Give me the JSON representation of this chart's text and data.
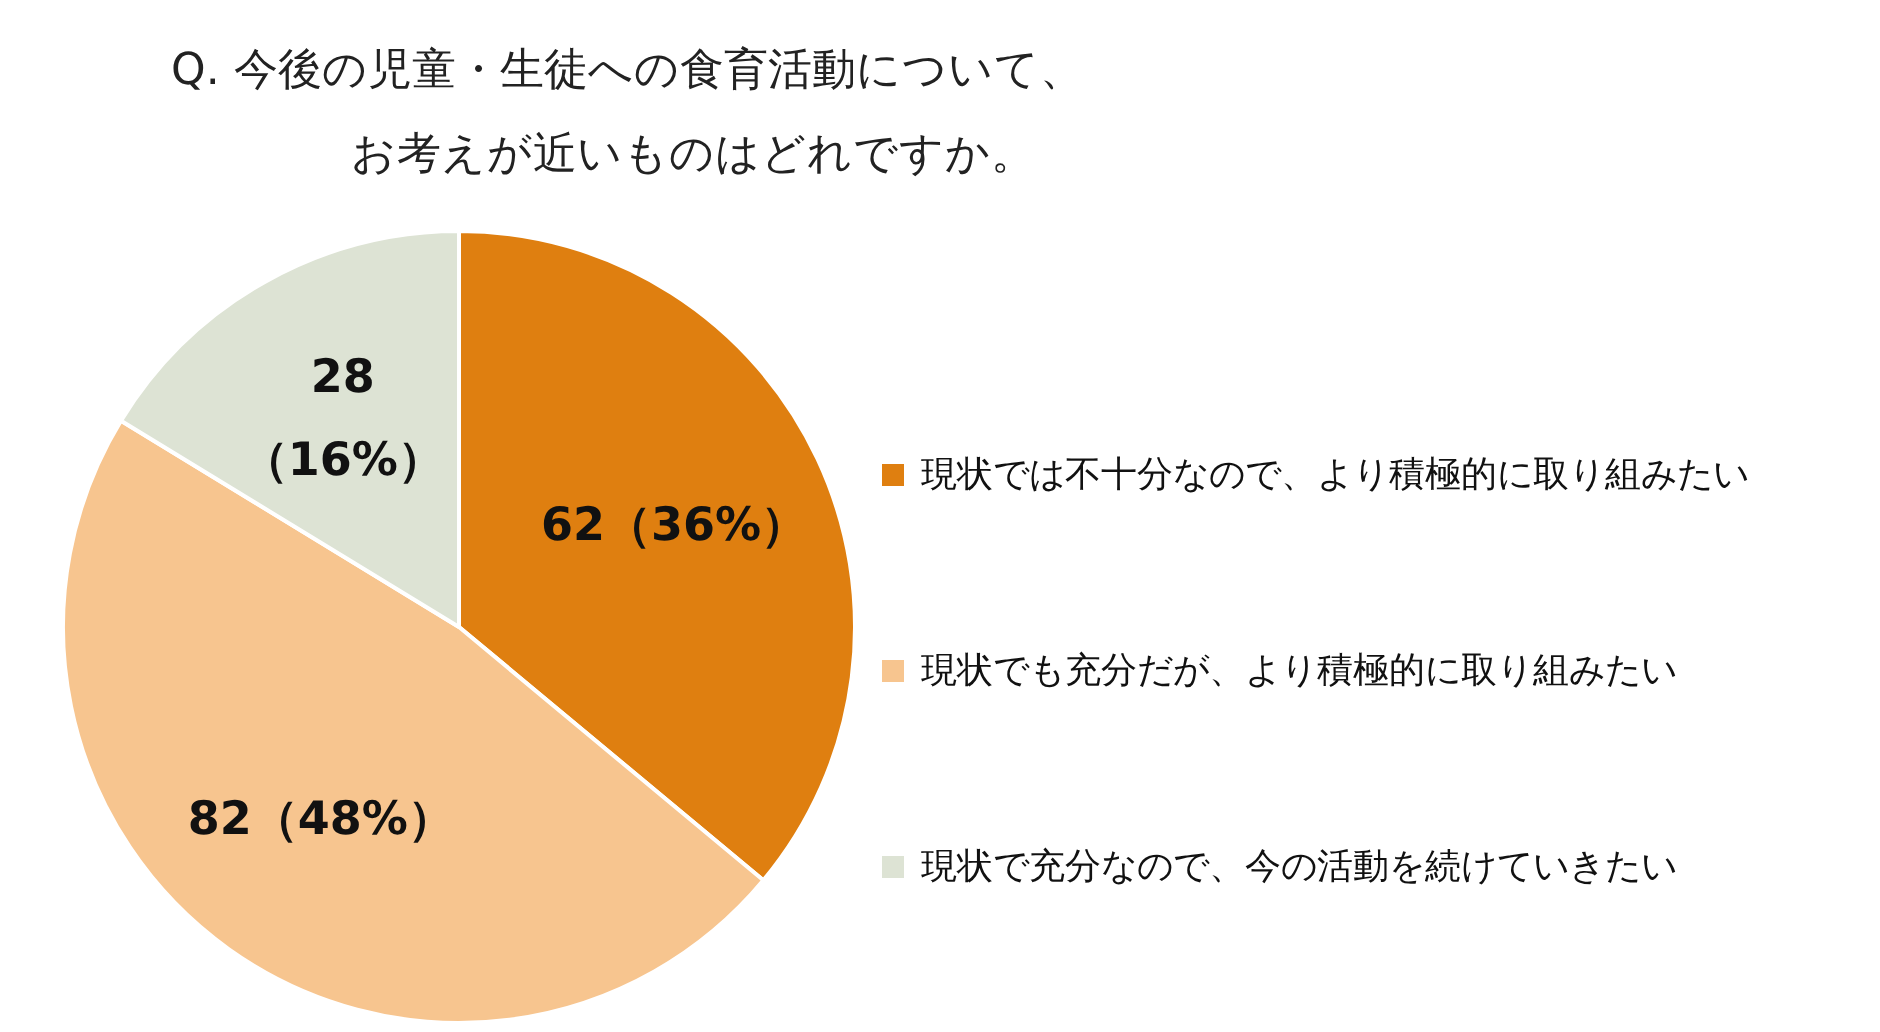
{
  "chart_data": {
    "type": "pie",
    "title": "Q.  今後の児童・生徒への食育活動について、お考えが近いものはどれですか。",
    "categories": [
      "現状では不十分なので、より積極的に取り組みたい",
      "現状でも充分だが、より積極的に取り組みたい",
      "現状で充分なので、今の活動を続けていきたい"
    ],
    "values": [
      62,
      82,
      28
    ],
    "colors": [
      "#df7f10",
      "#f7c58f",
      "#dde3d4"
    ],
    "value_labels": [
      "62（36%）",
      "82（48%）",
      "28\n（16%）"
    ],
    "legend": "right"
  }
}
